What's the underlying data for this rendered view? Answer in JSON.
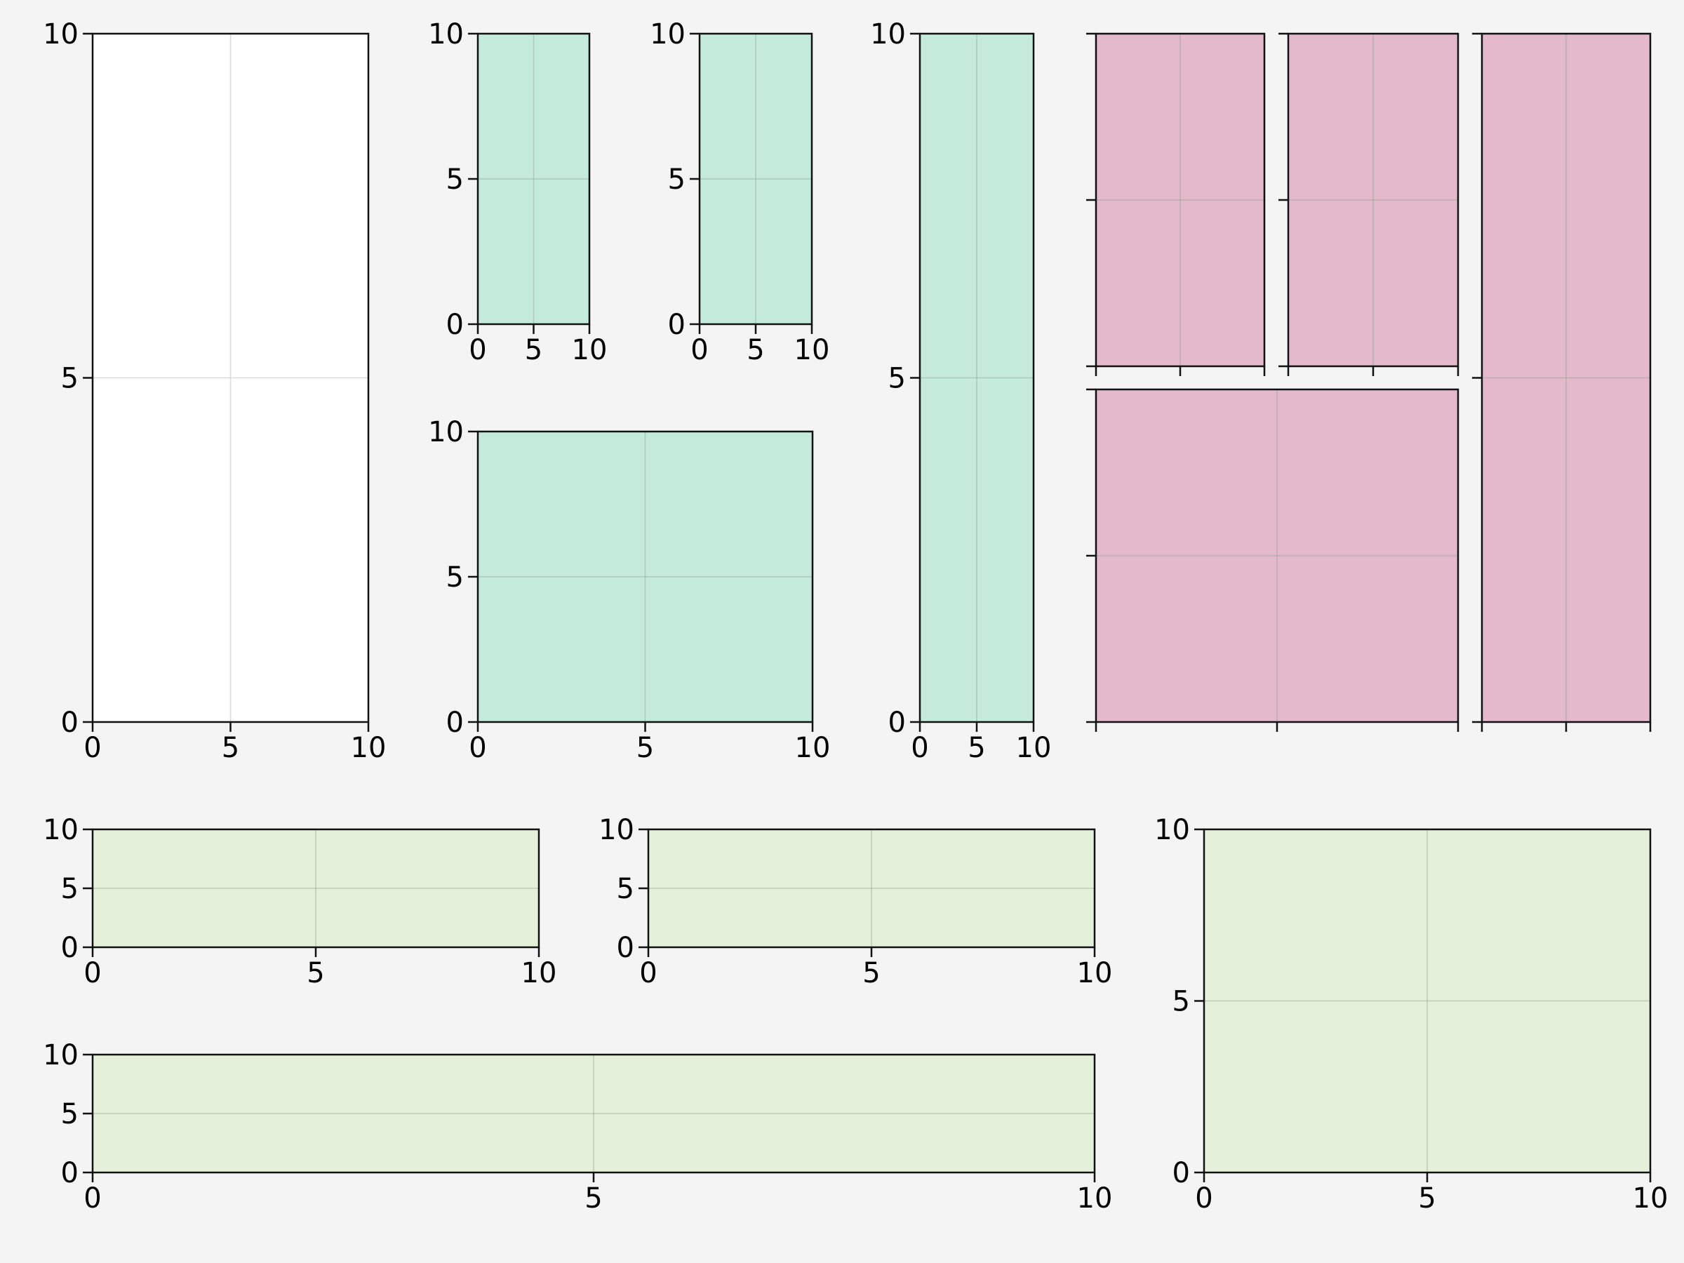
{
  "figure": {
    "background": "#f4f4f4"
  },
  "colors": {
    "white": "#ffffff",
    "green": "#c4eadb",
    "pink": "#e3b9cb",
    "lime": "#e5f0da",
    "axis": "#111111",
    "grid_light": "#d9d9d9",
    "grid_dark": "#8f9f95"
  },
  "chart_data": [
    {
      "id": "p1",
      "type": "empty",
      "xlim": [
        0,
        10
      ],
      "ylim": [
        0,
        10
      ],
      "xticks": [
        0,
        5,
        10
      ],
      "yticks": [
        0,
        5,
        10
      ],
      "xtick_labels": [
        "0",
        "5",
        "10"
      ],
      "ytick_labels": [
        "0",
        "5",
        "10"
      ],
      "grid": true,
      "face": "white"
    },
    {
      "id": "p2",
      "type": "empty",
      "xlim": [
        0,
        10
      ],
      "ylim": [
        0,
        10
      ],
      "xticks": [
        0,
        5,
        10
      ],
      "yticks": [
        0,
        5,
        10
      ],
      "xtick_labels": [
        "0",
        "5",
        "10"
      ],
      "ytick_labels": [
        "0",
        "5",
        "10"
      ],
      "grid": true,
      "face": "green"
    },
    {
      "id": "p3",
      "type": "empty",
      "xlim": [
        0,
        10
      ],
      "ylim": [
        0,
        10
      ],
      "xticks": [
        0,
        5,
        10
      ],
      "yticks": [
        0,
        5,
        10
      ],
      "xtick_labels": [
        "0",
        "5",
        "10"
      ],
      "ytick_labels": [
        "0",
        "5",
        "10"
      ],
      "grid": true,
      "face": "green"
    },
    {
      "id": "p4",
      "type": "empty",
      "xlim": [
        0,
        10
      ],
      "ylim": [
        0,
        10
      ],
      "xticks": [
        0,
        5,
        10
      ],
      "yticks": [
        0,
        5,
        10
      ],
      "xtick_labels": [
        "0",
        "5",
        "10"
      ],
      "ytick_labels": [
        "0",
        "5",
        "10"
      ],
      "grid": true,
      "face": "green"
    },
    {
      "id": "p5",
      "type": "empty",
      "xlim": [
        0,
        10
      ],
      "ylim": [
        0,
        10
      ],
      "xticks": [
        0,
        5,
        10
      ],
      "yticks": [
        0,
        5,
        10
      ],
      "xtick_labels": [
        "0",
        "5",
        "10"
      ],
      "ytick_labels": [
        "0",
        "5",
        "10"
      ],
      "grid": true,
      "face": "green"
    },
    {
      "id": "p6",
      "type": "empty",
      "xlim": [
        0,
        10
      ],
      "ylim": [
        0,
        10
      ],
      "xticks": [
        0,
        5,
        10
      ],
      "yticks": [
        0,
        5,
        10
      ],
      "xtick_labels": [],
      "ytick_labels": [],
      "grid": true,
      "face": "pink"
    },
    {
      "id": "p7",
      "type": "empty",
      "xlim": [
        0,
        10
      ],
      "ylim": [
        0,
        10
      ],
      "xticks": [
        0,
        5,
        10
      ],
      "yticks": [
        0,
        5,
        10
      ],
      "xtick_labels": [],
      "ytick_labels": [],
      "grid": true,
      "face": "pink"
    },
    {
      "id": "p8",
      "type": "empty",
      "xlim": [
        0,
        10
      ],
      "ylim": [
        0,
        10
      ],
      "xticks": [
        0,
        5,
        10
      ],
      "yticks": [
        0,
        5,
        10
      ],
      "xtick_labels": [],
      "ytick_labels": [],
      "grid": true,
      "face": "pink"
    },
    {
      "id": "p9",
      "type": "empty",
      "xlim": [
        0,
        10
      ],
      "ylim": [
        0,
        10
      ],
      "xticks": [
        0,
        5,
        10
      ],
      "yticks": [
        0,
        5,
        10
      ],
      "xtick_labels": [],
      "ytick_labels": [],
      "grid": true,
      "face": "pink"
    },
    {
      "id": "p10",
      "type": "empty",
      "xlim": [
        0,
        10
      ],
      "ylim": [
        0,
        10
      ],
      "xticks": [
        0,
        5,
        10
      ],
      "yticks": [
        0,
        5,
        10
      ],
      "xtick_labels": [
        "0",
        "5",
        "10"
      ],
      "ytick_labels": [
        "0",
        "5",
        "10"
      ],
      "grid": true,
      "face": "lime"
    },
    {
      "id": "p11",
      "type": "empty",
      "xlim": [
        0,
        10
      ],
      "ylim": [
        0,
        10
      ],
      "xticks": [
        0,
        5,
        10
      ],
      "yticks": [
        0,
        5,
        10
      ],
      "xtick_labels": [
        "0",
        "5",
        "10"
      ],
      "ytick_labels": [
        "0",
        "5",
        "10"
      ],
      "grid": true,
      "face": "lime"
    },
    {
      "id": "p12",
      "type": "empty",
      "xlim": [
        0,
        10
      ],
      "ylim": [
        0,
        10
      ],
      "xticks": [
        0,
        5,
        10
      ],
      "yticks": [
        0,
        5,
        10
      ],
      "xtick_labels": [
        "0",
        "5",
        "10"
      ],
      "ytick_labels": [
        "0",
        "5",
        "10"
      ],
      "grid": true,
      "face": "lime"
    },
    {
      "id": "p13",
      "type": "empty",
      "xlim": [
        0,
        10
      ],
      "ylim": [
        0,
        10
      ],
      "xticks": [
        0,
        5,
        10
      ],
      "yticks": [
        0,
        5,
        10
      ],
      "xtick_labels": [
        "0",
        "5",
        "10"
      ],
      "ytick_labels": [
        "0",
        "5",
        "10"
      ],
      "grid": true,
      "face": "lime"
    }
  ]
}
